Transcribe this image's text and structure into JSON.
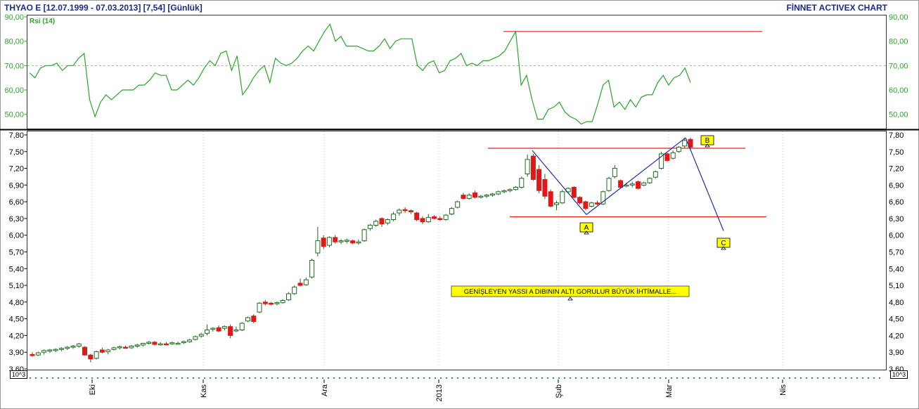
{
  "header": {
    "title": "THYAO E  [12.07.1999 - 07.03.2013]  [7,54]  [Günlük]",
    "brand": "FİNNET ACTIVEX CHART"
  },
  "chart_data": [
    {
      "type": "line",
      "title": "Rsi (14)",
      "ylim": [
        45,
        90
      ],
      "y_ticks": [
        "90,00",
        "80,00",
        "70,00",
        "60,00",
        "50,00"
      ],
      "grid": "dashed line at 70",
      "colors": {
        "line": "#2aa52a",
        "resistance": "#e02020"
      },
      "series": [
        {
          "name": "Rsi (14)",
          "values": [
            67,
            65,
            69,
            70,
            70,
            71,
            68,
            70,
            70,
            73,
            75,
            56,
            49,
            55,
            58,
            56,
            58,
            60,
            60,
            60,
            62,
            62,
            64,
            67,
            66,
            66,
            60,
            60,
            62,
            64,
            62,
            65,
            69,
            72,
            70,
            75,
            76,
            68,
            74,
            58,
            61,
            65,
            68,
            70,
            63,
            73,
            71,
            70,
            71,
            73,
            76,
            78,
            76,
            80,
            84,
            87,
            80,
            82,
            78,
            78,
            78,
            77,
            76,
            76,
            78,
            81,
            77,
            80,
            81,
            81,
            81,
            70,
            68,
            71,
            72,
            67,
            68,
            72,
            73,
            75,
            70,
            71,
            70,
            72,
            72,
            73,
            74,
            76,
            80,
            84,
            62,
            66,
            56,
            48,
            48,
            52,
            53,
            55,
            51,
            49,
            48,
            46,
            47,
            47,
            54,
            62,
            64,
            53,
            55,
            52,
            56,
            53,
            57,
            58,
            58,
            63,
            66,
            62,
            65,
            66,
            69,
            63
          ]
        }
      ],
      "annotations": [
        {
          "kind": "horizontal-line",
          "value": 84,
          "label": ""
        }
      ]
    },
    {
      "type": "candlestick",
      "ylim": [
        3.6,
        7.85
      ],
      "y_ticks": [
        "7,80",
        "7,50",
        "7,20",
        "6,90",
        "6,60",
        "6,30",
        "6,00",
        "5,70",
        "5,40",
        "5,10",
        "4,80",
        "4,50",
        "4,20",
        "3,90",
        "3,60"
      ],
      "x_ticks": [
        "Eki",
        "Kas",
        "Ara",
        "2013",
        "Şub",
        "Mar",
        "Nis"
      ],
      "scale_label": "10^3",
      "colors": {
        "up": "#ffffff",
        "up_border": "#1e6b1e",
        "down": "#e01818",
        "wick": "#1e6b1e",
        "pattern": "#1c2fa0",
        "level": "#e02020",
        "note_bg": "#ffff00"
      },
      "candles_ohlc": [
        [
          3.86,
          3.9,
          3.82,
          3.84
        ],
        [
          3.85,
          3.91,
          3.83,
          3.89
        ],
        [
          3.9,
          3.95,
          3.86,
          3.93
        ],
        [
          3.92,
          3.96,
          3.89,
          3.94
        ],
        [
          3.93,
          3.97,
          3.9,
          3.95
        ],
        [
          3.95,
          3.99,
          3.92,
          3.97
        ],
        [
          3.97,
          4.01,
          3.94,
          3.99
        ],
        [
          3.99,
          4.03,
          3.96,
          4.01
        ],
        [
          4.01,
          4.07,
          3.98,
          4.05
        ],
        [
          3.99,
          4.01,
          3.84,
          3.85
        ],
        [
          3.85,
          3.87,
          3.72,
          3.78
        ],
        [
          3.79,
          3.93,
          3.77,
          3.91
        ],
        [
          3.94,
          3.98,
          3.88,
          3.9
        ],
        [
          3.91,
          3.96,
          3.86,
          3.94
        ],
        [
          3.95,
          4.0,
          3.93,
          3.98
        ],
        [
          3.98,
          4.02,
          3.95,
          4.0
        ],
        [
          3.99,
          4.02,
          3.96,
          3.98
        ],
        [
          3.98,
          4.03,
          3.96,
          4.01
        ],
        [
          4.01,
          4.05,
          3.98,
          4.03
        ],
        [
          4.03,
          4.07,
          4.0,
          4.06
        ],
        [
          4.06,
          4.1,
          4.04,
          4.08
        ],
        [
          4.08,
          4.1,
          4.02,
          4.04
        ],
        [
          4.05,
          4.08,
          4.02,
          4.05
        ],
        [
          4.05,
          4.08,
          4.03,
          4.04
        ],
        [
          4.05,
          4.09,
          4.03,
          4.07
        ],
        [
          4.06,
          4.09,
          4.04,
          4.06
        ],
        [
          4.07,
          4.11,
          4.05,
          4.09
        ],
        [
          4.09,
          4.14,
          4.07,
          4.12
        ],
        [
          4.13,
          4.2,
          4.11,
          4.18
        ],
        [
          4.19,
          4.25,
          4.16,
          4.22
        ],
        [
          4.24,
          4.4,
          4.2,
          4.3
        ],
        [
          4.31,
          4.35,
          4.27,
          4.33
        ],
        [
          4.34,
          4.38,
          4.26,
          4.28
        ],
        [
          4.33,
          4.38,
          4.29,
          4.36
        ],
        [
          4.36,
          4.4,
          4.15,
          4.2
        ],
        [
          4.3,
          4.36,
          4.26,
          4.3
        ],
        [
          4.3,
          4.44,
          4.28,
          4.42
        ],
        [
          4.46,
          4.54,
          4.44,
          4.52
        ],
        [
          4.55,
          4.58,
          4.42,
          4.45
        ],
        [
          4.62,
          4.8,
          4.6,
          4.78
        ],
        [
          4.8,
          4.84,
          4.74,
          4.77
        ],
        [
          4.78,
          4.8,
          4.74,
          4.76
        ],
        [
          4.77,
          4.81,
          4.74,
          4.79
        ],
        [
          4.79,
          4.85,
          4.77,
          4.83
        ],
        [
          4.84,
          4.98,
          4.82,
          4.95
        ],
        [
          4.95,
          5.1,
          4.93,
          5.07
        ],
        [
          5.14,
          5.22,
          5.08,
          5.1
        ],
        [
          5.11,
          5.24,
          5.09,
          5.2
        ],
        [
          5.25,
          5.58,
          5.22,
          5.55
        ],
        [
          5.68,
          6.15,
          5.62,
          5.9
        ],
        [
          5.95,
          6.0,
          5.75,
          5.8
        ],
        [
          5.82,
          5.98,
          5.78,
          5.96
        ],
        [
          5.96,
          6.0,
          5.85,
          5.88
        ],
        [
          5.88,
          5.93,
          5.84,
          5.9
        ],
        [
          5.89,
          5.94,
          5.85,
          5.91
        ],
        [
          5.9,
          5.92,
          5.84,
          5.86
        ],
        [
          5.86,
          5.92,
          5.83,
          5.88
        ],
        [
          5.9,
          6.12,
          5.88,
          6.1
        ],
        [
          6.12,
          6.2,
          6.08,
          6.18
        ],
        [
          6.18,
          6.28,
          6.15,
          6.25
        ],
        [
          6.3,
          6.32,
          6.15,
          6.2
        ],
        [
          6.22,
          6.3,
          6.18,
          6.28
        ],
        [
          6.28,
          6.42,
          6.25,
          6.38
        ],
        [
          6.4,
          6.48,
          6.35,
          6.45
        ],
        [
          6.46,
          6.5,
          6.4,
          6.44
        ],
        [
          6.44,
          6.46,
          6.38,
          6.42
        ],
        [
          6.4,
          6.42,
          6.25,
          6.28
        ],
        [
          6.3,
          6.34,
          6.2,
          6.24
        ],
        [
          6.24,
          6.38,
          6.22,
          6.32
        ],
        [
          6.33,
          6.36,
          6.28,
          6.3
        ],
        [
          6.3,
          6.34,
          6.26,
          6.28
        ],
        [
          6.28,
          6.38,
          6.26,
          6.36
        ],
        [
          6.38,
          6.5,
          6.36,
          6.48
        ],
        [
          6.5,
          6.62,
          6.48,
          6.6
        ],
        [
          6.72,
          6.76,
          6.64,
          6.66
        ],
        [
          6.66,
          6.75,
          6.64,
          6.72
        ],
        [
          6.76,
          6.8,
          6.66,
          6.68
        ],
        [
          6.68,
          6.72,
          6.66,
          6.7
        ],
        [
          6.7,
          6.74,
          6.67,
          6.72
        ],
        [
          6.72,
          6.76,
          6.69,
          6.74
        ],
        [
          6.74,
          6.8,
          6.72,
          6.78
        ],
        [
          6.78,
          6.82,
          6.75,
          6.8
        ],
        [
          6.8,
          6.84,
          6.77,
          6.82
        ],
        [
          6.82,
          6.88,
          6.8,
          6.86
        ],
        [
          6.86,
          7.05,
          6.84,
          7.02
        ],
        [
          7.1,
          7.45,
          7.05,
          7.36
        ],
        [
          7.42,
          7.46,
          6.98,
          7.0
        ],
        [
          7.18,
          7.26,
          6.75,
          6.8
        ],
        [
          7.0,
          7.1,
          6.65,
          6.7
        ],
        [
          6.78,
          6.82,
          6.5,
          6.52
        ],
        [
          6.55,
          6.62,
          6.45,
          6.58
        ],
        [
          6.58,
          6.82,
          6.56,
          6.78
        ],
        [
          6.78,
          6.86,
          6.75,
          6.84
        ],
        [
          6.86,
          6.88,
          6.66,
          6.68
        ],
        [
          6.68,
          6.7,
          6.55,
          6.58
        ],
        [
          6.6,
          6.62,
          6.45,
          6.48
        ],
        [
          6.52,
          6.6,
          6.5,
          6.58
        ],
        [
          6.58,
          6.62,
          6.54,
          6.56
        ],
        [
          6.56,
          6.8,
          6.54,
          6.78
        ],
        [
          6.8,
          7.05,
          6.78,
          7.02
        ],
        [
          7.05,
          7.26,
          7.02,
          7.2
        ],
        [
          6.98,
          7.0,
          6.84,
          6.86
        ],
        [
          6.88,
          6.94,
          6.86,
          6.9
        ],
        [
          6.9,
          6.96,
          6.86,
          6.92
        ],
        [
          6.96,
          6.98,
          6.82,
          6.84
        ],
        [
          6.9,
          6.96,
          6.88,
          6.94
        ],
        [
          6.94,
          7.04,
          6.92,
          7.02
        ],
        [
          7.04,
          7.16,
          7.02,
          7.14
        ],
        [
          7.2,
          7.5,
          7.18,
          7.46
        ],
        [
          7.46,
          7.48,
          7.32,
          7.34
        ],
        [
          7.38,
          7.52,
          7.36,
          7.48
        ],
        [
          7.5,
          7.6,
          7.48,
          7.58
        ],
        [
          7.6,
          7.75,
          7.56,
          7.7
        ],
        [
          7.72,
          7.75,
          7.55,
          7.58
        ]
      ],
      "annotations": [
        {
          "kind": "horizontal-line",
          "value": 7.56,
          "label": ""
        },
        {
          "kind": "horizontal-line",
          "value": 6.33,
          "label": ""
        },
        {
          "kind": "point",
          "label": "A",
          "value": 6.37
        },
        {
          "kind": "point",
          "label": "B",
          "value": 7.75
        },
        {
          "kind": "point",
          "label": "C",
          "value": 6.08
        },
        {
          "kind": "note",
          "label": "GENİŞLEYEN YASSI A DIBININ ALTI GORULUR BÜYÜK İHTİMALLE..."
        }
      ]
    }
  ]
}
